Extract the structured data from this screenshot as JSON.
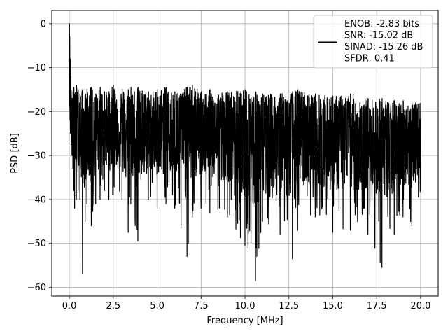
{
  "chart_data": {
    "type": "line",
    "title": "",
    "xlabel": "Frequency [MHz]",
    "ylabel": "PSD [dB]",
    "xlim": [
      -1.0,
      21.0
    ],
    "ylim": [
      -62.0,
      3.0
    ],
    "x_ticks": [
      0.0,
      2.5,
      5.0,
      7.5,
      10.0,
      12.5,
      15.0,
      17.5,
      20.0
    ],
    "x_tick_labels": [
      "0.0",
      "2.5",
      "5.0",
      "7.5",
      "10.0",
      "12.5",
      "15.0",
      "17.5",
      "20.0"
    ],
    "y_ticks": [
      0,
      -10,
      -20,
      -30,
      -40,
      -50,
      -60
    ],
    "y_tick_labels": [
      "0",
      "−10",
      "−20",
      "−30",
      "−40",
      "−50",
      "−60"
    ],
    "grid": true,
    "legend_position": "top-right",
    "series": [
      {
        "name": "ENOB: -2.83 bits\nSNR: -15.02 dB\nSINAD: -15.26 dB\nSFDR: 0.41",
        "color": "#000000",
        "x": [
          0.0,
          0.02,
          0.04,
          0.06,
          0.08,
          0.1,
          0.15,
          0.2,
          0.25,
          0.3,
          0.4,
          0.5,
          0.6,
          0.75,
          0.9,
          1.0,
          1.25,
          1.5,
          1.75,
          2.0,
          2.25,
          2.5,
          3.0,
          3.35,
          3.5,
          3.9,
          4.5,
          5.0,
          5.5,
          6.0,
          6.7,
          7.0,
          7.5,
          8.0,
          9.0,
          10.0,
          10.6,
          11.0,
          12.0,
          12.7,
          13.0,
          14.0,
          15.0,
          16.0,
          17.0,
          17.8,
          18.5,
          19.0,
          19.5,
          20.0
        ],
        "peak": [
          0.0,
          -3.0,
          -8.0,
          -10.0,
          -12.0,
          -15.0,
          -17.0,
          -15.5,
          -14.5,
          -16.0,
          -14.0,
          -15.0,
          -16.0,
          -15.0,
          -16.0,
          -15.0,
          -14.5,
          -16.0,
          -14.5,
          -15.5,
          -15.5,
          -14.0,
          -15.0,
          -15.0,
          -14.5,
          -14.5,
          -15.5,
          -15.0,
          -14.5,
          -15.5,
          -14.5,
          -14.0,
          -15.5,
          -15.0,
          -15.5,
          -15.0,
          -15.5,
          -16.0,
          -16.0,
          -15.5,
          -15.0,
          -16.0,
          -16.5,
          -16.0,
          -17.0,
          -17.0,
          -17.5,
          -17.5,
          -18.0,
          -18.0
        ],
        "trough": [
          -12.0,
          -19.0,
          -22.0,
          -25.0,
          -25.0,
          -27.5,
          -30.0,
          -33.0,
          -38.0,
          -42.0,
          -40.0,
          -38.0,
          -40.0,
          -57.0,
          -45.0,
          -41.0,
          -46.0,
          -41.0,
          -40.0,
          -38.0,
          -40.0,
          -39.0,
          -40.0,
          -47.5,
          -41.0,
          -49.5,
          -40.0,
          -42.0,
          -41.0,
          -42.0,
          -53.0,
          -44.0,
          -42.0,
          -43.0,
          -44.0,
          -50.5,
          -58.5,
          -45.0,
          -48.0,
          -53.5,
          -47.0,
          -44.0,
          -47.5,
          -47.0,
          -48.0,
          -55.5,
          -48.0,
          -44.0,
          -46.0,
          -38.0
        ],
        "mean": [
          -5.0,
          -12.0,
          -16.0,
          -18.0,
          -19.0,
          -21.0,
          -23.0,
          -24.0,
          -25.0,
          -25.5,
          -25.5,
          -25.5,
          -25.5,
          -25.5,
          -25.5,
          -25.5,
          -25.5,
          -25.5,
          -25.5,
          -25.5,
          -25.5,
          -25.5,
          -25.5,
          -25.5,
          -25.5,
          -25.5,
          -25.5,
          -25.5,
          -25.5,
          -25.5,
          -25.5,
          -25.5,
          -25.5,
          -25.5,
          -25.5,
          -25.5,
          -25.5,
          -26.0,
          -26.0,
          -26.0,
          -26.0,
          -26.5,
          -26.5,
          -27.0,
          -27.0,
          -27.5,
          -27.5,
          -27.5,
          -28.0,
          -28.0
        ]
      }
    ]
  }
}
